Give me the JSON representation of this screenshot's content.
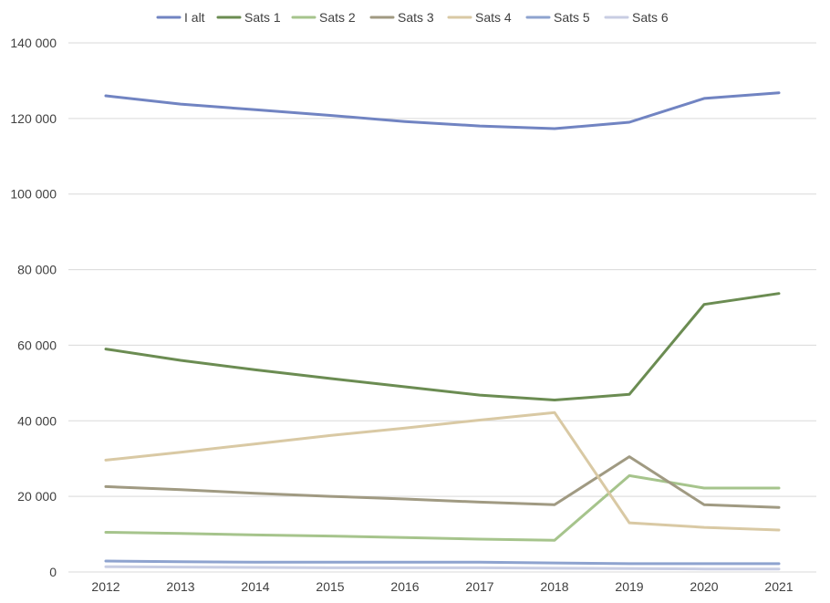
{
  "chart_data": {
    "type": "line",
    "categories": [
      "2012",
      "2013",
      "2014",
      "2015",
      "2016",
      "2017",
      "2018",
      "2019",
      "2020",
      "2021"
    ],
    "ylim": [
      0,
      140000
    ],
    "yticks": [
      0,
      20000,
      40000,
      60000,
      80000,
      100000,
      120000,
      140000
    ],
    "ytick_labels": [
      "0",
      "20 000",
      "40 000",
      "60 000",
      "80 000",
      "100 000",
      "120 000",
      "140 000"
    ],
    "grid": true,
    "legend_position": "top",
    "series": [
      {
        "name": "I alt",
        "color": "#7184c2",
        "values": [
          126000,
          123800,
          122300,
          120800,
          119200,
          118000,
          117300,
          119000,
          125300,
          126800
        ]
      },
      {
        "name": "Sats 1",
        "color": "#6b8c52",
        "values": [
          59000,
          56000,
          53500,
          51200,
          49000,
          46800,
          45500,
          47000,
          70800,
          73700
        ]
      },
      {
        "name": "Sats 2",
        "color": "#a6c48c",
        "values": [
          10500,
          10200,
          9800,
          9500,
          9100,
          8700,
          8400,
          25500,
          22200,
          22200
        ]
      },
      {
        "name": "Sats 3",
        "color": "#a09a82",
        "values": [
          22600,
          21800,
          20800,
          20000,
          19300,
          18500,
          17800,
          30500,
          17800,
          17100
        ]
      },
      {
        "name": "Sats 4",
        "color": "#d9c9a4",
        "values": [
          29600,
          31700,
          33900,
          36100,
          38100,
          40200,
          42200,
          13000,
          11800,
          11100
        ]
      },
      {
        "name": "Sats 5",
        "color": "#8ea3cf",
        "values": [
          2900,
          2700,
          2600,
          2600,
          2600,
          2600,
          2400,
          2200,
          2200,
          2200
        ]
      },
      {
        "name": "Sats 6",
        "color": "#c8cde3",
        "values": [
          1400,
          1300,
          1200,
          1100,
          1100,
          1100,
          1000,
          900,
          800,
          800
        ]
      }
    ]
  }
}
